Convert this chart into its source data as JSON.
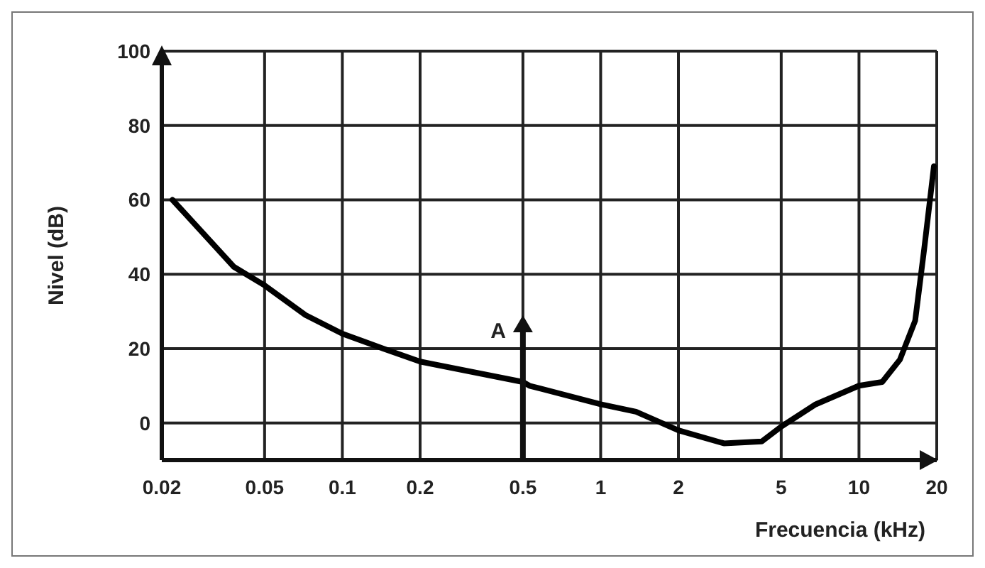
{
  "chart_data": {
    "type": "line",
    "xlabel": "Frecuencia (kHz)",
    "ylabel": "Nivel (dB)",
    "log": "x",
    "x": [
      0.022,
      0.038,
      0.05,
      0.072,
      0.1,
      0.144,
      0.2,
      0.5,
      0.53,
      1,
      1.37,
      2,
      3,
      4.2,
      5,
      6.8,
      10,
      12.3,
      14.4,
      16.5,
      17.9,
      19.5
    ],
    "series": [
      {
        "color": "#000000",
        "values": [
          60,
          42,
          37,
          29,
          24,
          20,
          16.5,
          11,
          10,
          5,
          3,
          -2,
          -5.5,
          -5,
          -1,
          5,
          10,
          11,
          17,
          27.5,
          47,
          69
        ]
      }
    ],
    "xlim": [
      0.02,
      20
    ],
    "xticks": [
      0.02,
      0.05,
      0.1,
      0.2,
      0.5,
      1,
      2,
      5,
      10,
      20
    ],
    "ylim": [
      -10,
      100
    ],
    "yticks": [
      0,
      20,
      40,
      60,
      80,
      100
    ],
    "grid": true,
    "marker": "none",
    "line_style": "solid",
    "legend": false,
    "ref_lines": [
      {
        "axis": "x",
        "value": 0.5,
        "label": "A"
      }
    ]
  }
}
